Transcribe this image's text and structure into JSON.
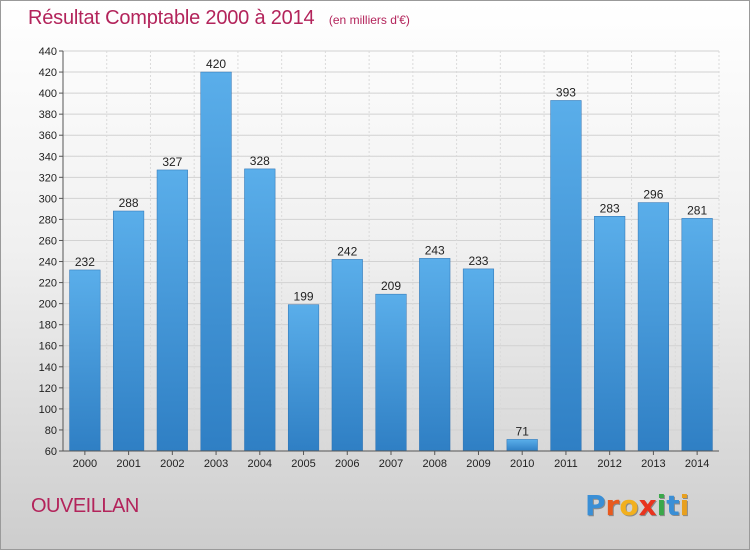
{
  "chart_data": {
    "type": "bar",
    "title": "Résultat Comptable 2000 à 2014",
    "subtitle": "(en milliers d'€)",
    "categories": [
      "2000",
      "2001",
      "2002",
      "2003",
      "2004",
      "2005",
      "2006",
      "2007",
      "2008",
      "2009",
      "2010",
      "2011",
      "2012",
      "2013",
      "2014"
    ],
    "values": [
      232,
      288,
      327,
      420,
      328,
      199,
      242,
      209,
      243,
      233,
      71,
      393,
      283,
      296,
      281
    ],
    "ylim": [
      60,
      440
    ],
    "ytick_step": 20,
    "xlabel": "",
    "ylabel": "",
    "grid": true,
    "bar_color": "#4a9be0"
  },
  "footer": {
    "commune": "OUVEILLAN",
    "logo_letters": [
      "P",
      "r",
      "o",
      "x",
      "i",
      "t",
      "i"
    ],
    "logo_colors": [
      "#3a8fd6",
      "#e85a1e",
      "#f2b01e",
      "#e8341e",
      "#3aa84a",
      "#3a8fd6",
      "#e8a01e"
    ]
  }
}
